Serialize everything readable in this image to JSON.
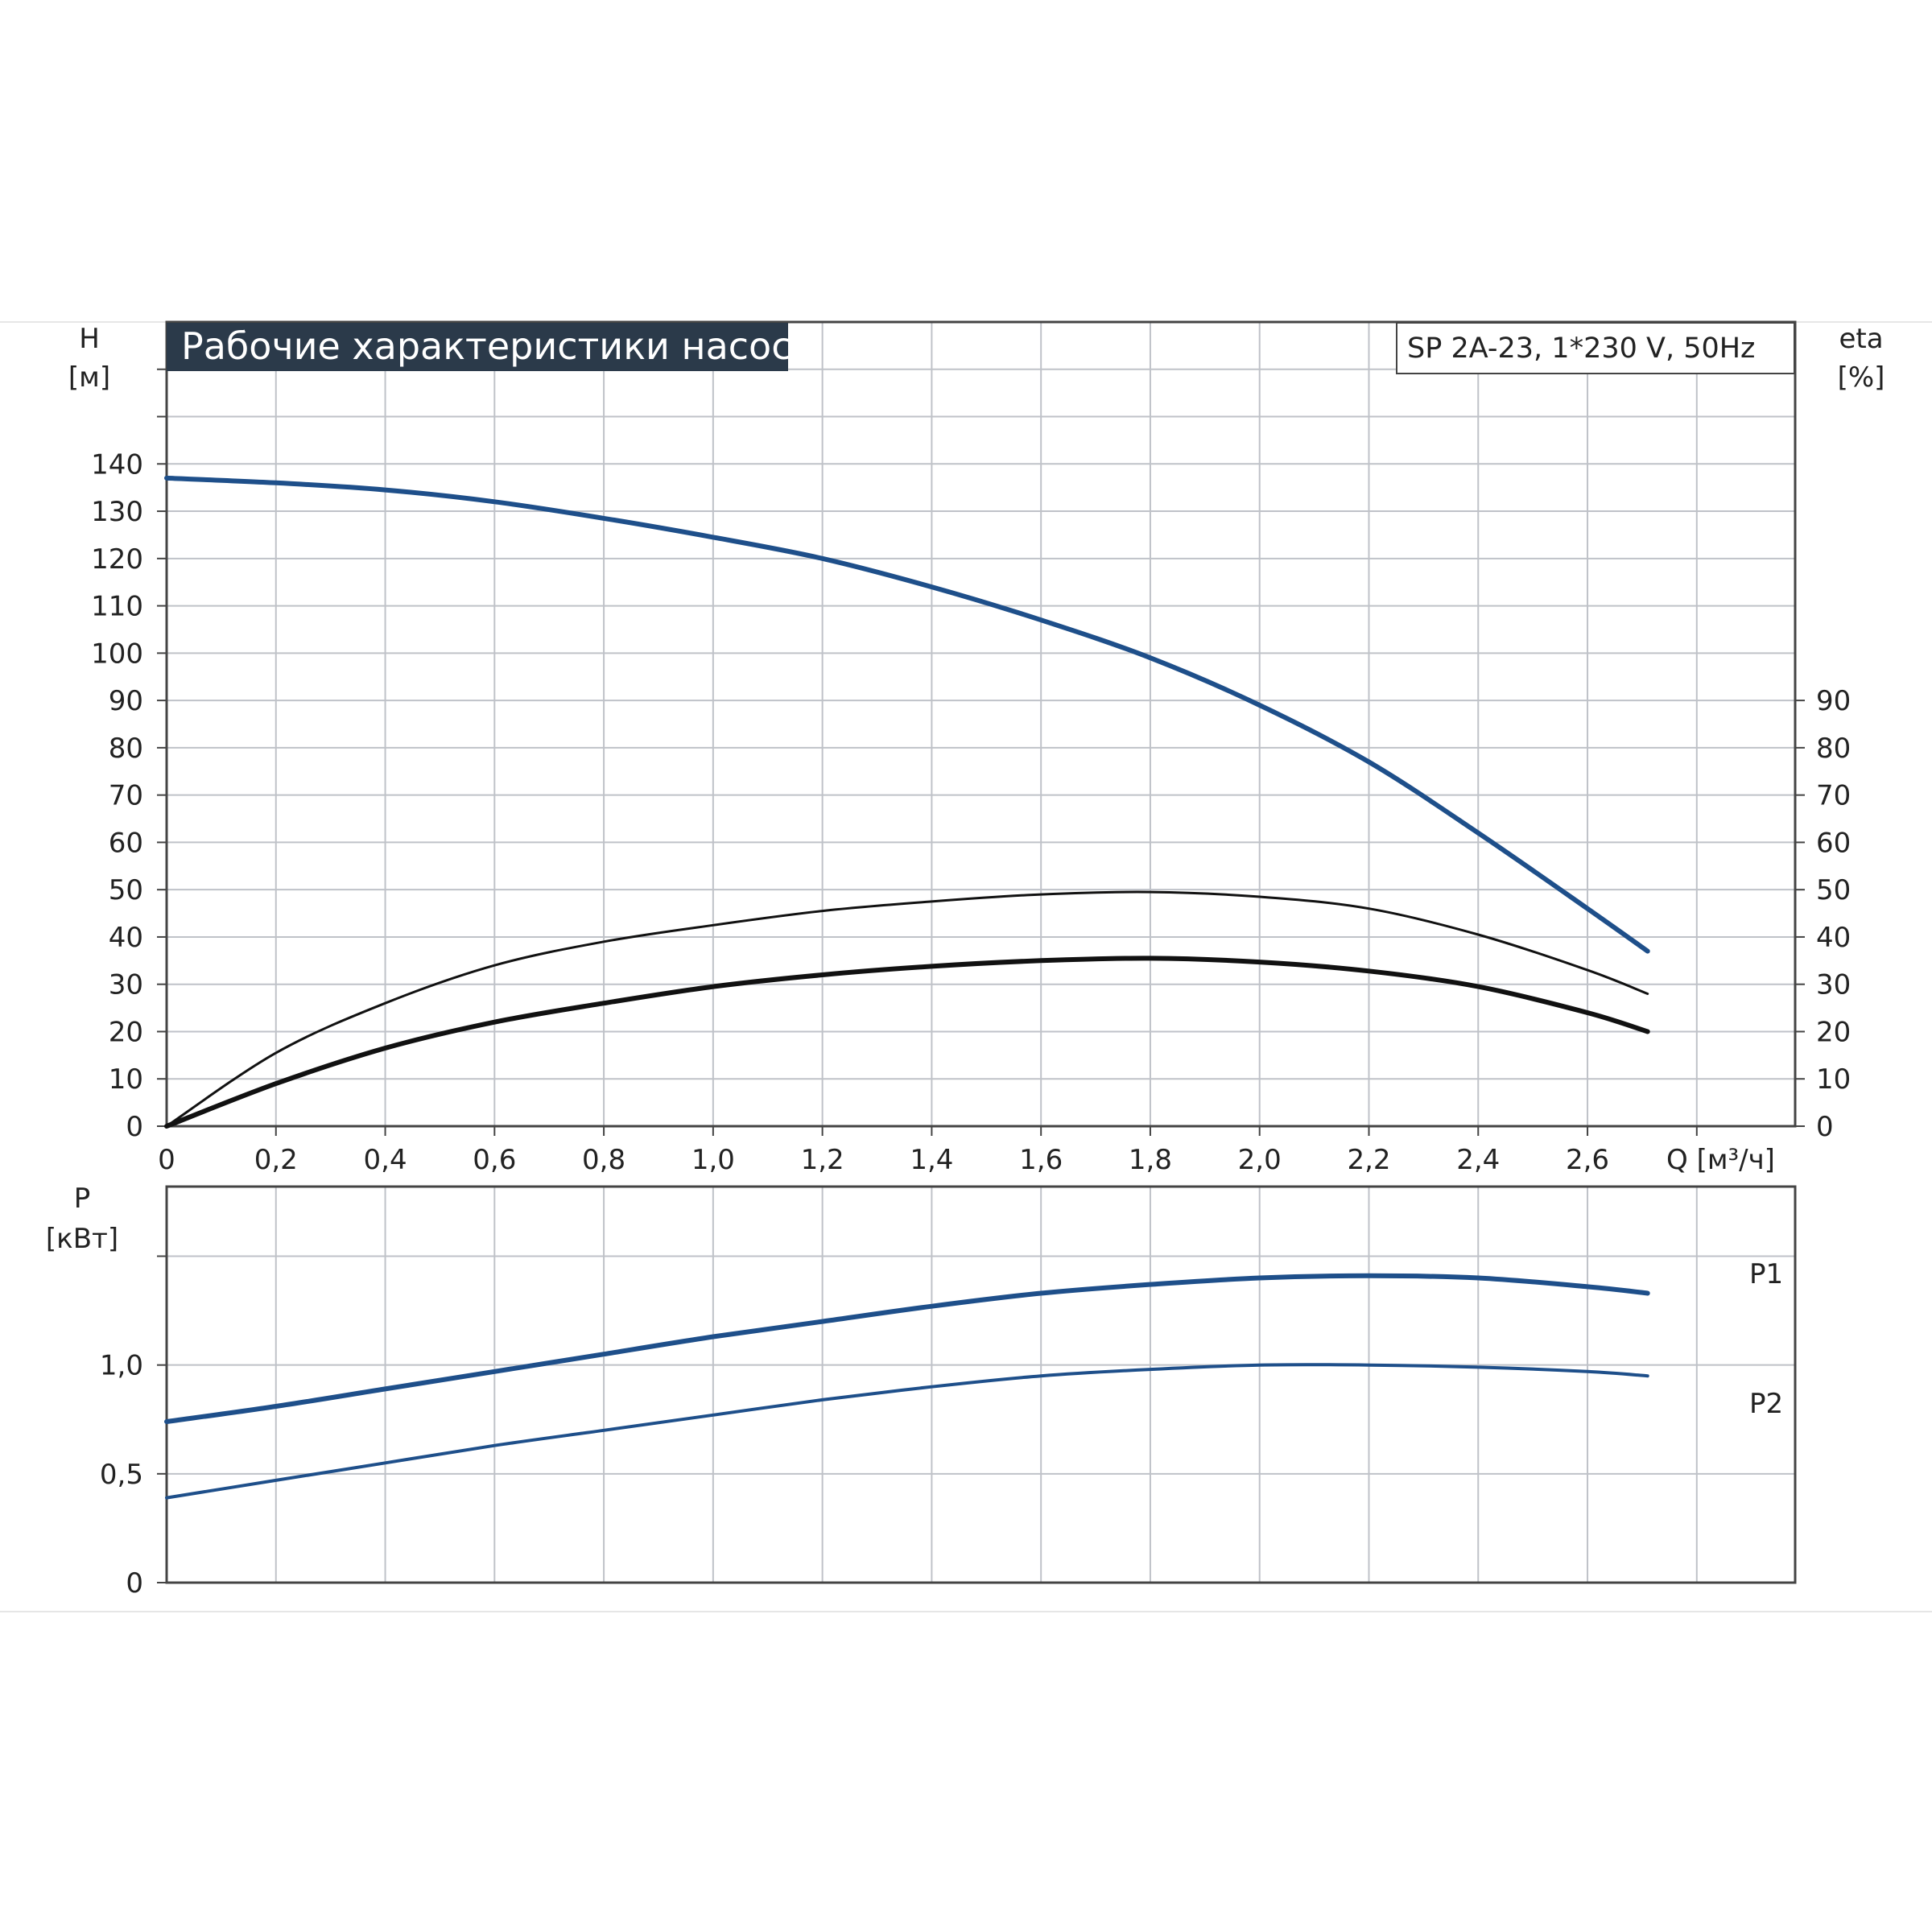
{
  "title": "Рабочие характеристики насоса",
  "model": "SP 2A-23, 1*230 V, 50Hz",
  "colors": {
    "title_bg": "#2b3a4a",
    "curve_blue": "#1e4f8a",
    "curve_black": "#111111",
    "grid": "#bfc2c8",
    "frame": "#444444",
    "page_rule": "#e6e6e6"
  },
  "chart_data": [
    {
      "type": "line",
      "name": "head-efficiency",
      "title": "Рабочие характеристики насоса",
      "subtitle": "SP 2A-23, 1*230 V, 50Hz",
      "xlabel": "Q [м³/ч]",
      "x_ticks": [
        "0",
        "0,2",
        "0,4",
        "0,6",
        "0,8",
        "1,0",
        "1,2",
        "1,4",
        "1,6",
        "1,8",
        "2,0",
        "2,2",
        "2,4",
        "2,6"
      ],
      "xlim": [
        0,
        2.98
      ],
      "ylabel_left": [
        "H",
        "[м]"
      ],
      "y_ticks_left": [
        "0",
        "10",
        "20",
        "30",
        "40",
        "50",
        "60",
        "70",
        "80",
        "90",
        "100",
        "110",
        "120",
        "130",
        "140"
      ],
      "ylim": [
        0,
        170
      ],
      "ylabel_right": [
        "eta",
        "[%]"
      ],
      "y_ticks_right": [
        "0",
        "10",
        "20",
        "30",
        "40",
        "50",
        "60",
        "70",
        "80",
        "90"
      ],
      "grid": true,
      "series": [
        {
          "key": "H",
          "color": "#1e4f8a",
          "x": [
            0,
            0.2,
            0.4,
            0.6,
            0.8,
            1.0,
            1.2,
            1.4,
            1.6,
            1.8,
            2.0,
            2.2,
            2.4,
            2.6,
            2.71
          ],
          "y": [
            137,
            136,
            134.5,
            132,
            128.5,
            124.5,
            120,
            114,
            107,
            99,
            89,
            77,
            62,
            46,
            37
          ]
        },
        {
          "key": "eta-thin",
          "color": "#111111",
          "x": [
            0,
            0.2,
            0.4,
            0.6,
            0.8,
            1.0,
            1.2,
            1.4,
            1.6,
            1.8,
            2.0,
            2.2,
            2.4,
            2.6,
            2.71
          ],
          "y": [
            0,
            15.5,
            26,
            34,
            39,
            42.5,
            45.5,
            47.5,
            49,
            49.5,
            48.5,
            46,
            40.5,
            33,
            28
          ]
        },
        {
          "key": "eta-thick",
          "color": "#111111",
          "x": [
            0,
            0.2,
            0.4,
            0.6,
            0.8,
            1.0,
            1.2,
            1.4,
            1.6,
            1.8,
            2.0,
            2.2,
            2.4,
            2.6,
            2.71
          ],
          "y": [
            0,
            9,
            16.5,
            22,
            26,
            29.5,
            32,
            33.8,
            35,
            35.5,
            34.7,
            32.8,
            29.5,
            24,
            20
          ]
        }
      ]
    },
    {
      "type": "line",
      "name": "power",
      "xlim": [
        0,
        2.98
      ],
      "ylabel": [
        "P",
        "[кВт]"
      ],
      "y_ticks": [
        "0",
        "0,5",
        "1,0"
      ],
      "y_tick_values": [
        0,
        0.5,
        1.0
      ],
      "ylim": [
        0,
        1.82
      ],
      "grid": true,
      "series": [
        {
          "name": "P1",
          "color": "#1e4f8a",
          "x": [
            0,
            0.2,
            0.4,
            0.6,
            0.8,
            1.0,
            1.2,
            1.4,
            1.6,
            1.8,
            2.0,
            2.2,
            2.4,
            2.6,
            2.71
          ],
          "y": [
            0.74,
            0.81,
            0.89,
            0.97,
            1.05,
            1.13,
            1.2,
            1.27,
            1.33,
            1.37,
            1.4,
            1.41,
            1.4,
            1.36,
            1.33
          ]
        },
        {
          "name": "P2",
          "color": "#1e4f8a",
          "x": [
            0,
            0.2,
            0.4,
            0.6,
            0.8,
            1.0,
            1.2,
            1.4,
            1.6,
            1.8,
            2.0,
            2.2,
            2.4,
            2.6,
            2.71
          ],
          "y": [
            0.39,
            0.47,
            0.55,
            0.63,
            0.7,
            0.77,
            0.84,
            0.9,
            0.95,
            0.98,
            1.0,
            1.0,
            0.99,
            0.97,
            0.95
          ]
        }
      ]
    }
  ]
}
